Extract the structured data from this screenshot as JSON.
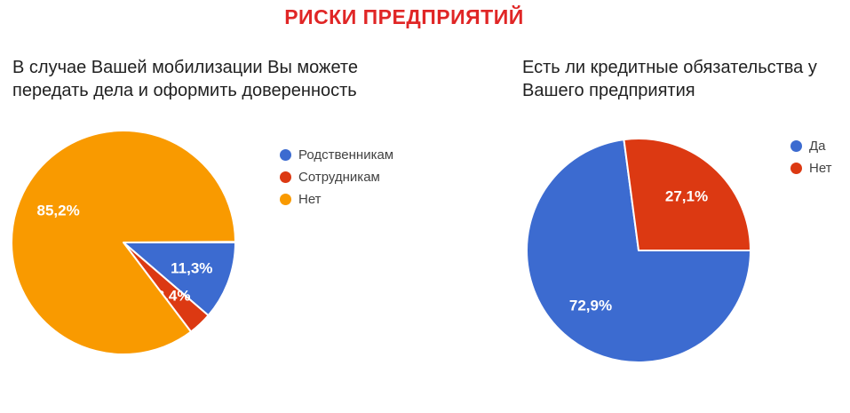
{
  "page": {
    "title": "РИСКИ ПРЕДПРИЯТИЙ",
    "title_color": "#e02626",
    "background_color": "#ffffff"
  },
  "text_colors": {
    "question": "#212121",
    "legend": "#424242",
    "slice_label": "#ffffff"
  },
  "chart_data": [
    {
      "type": "pie",
      "question": "В случае Вашей мобилизации Вы можете передать дела и оформить доверенность",
      "start_angle": "3-oclock",
      "direction": "clockwise",
      "legend_position": "right",
      "grid": false,
      "slices": [
        {
          "label": "Родственникам",
          "value_pct": 11.3,
          "display": "11,3%",
          "color": "#3c6bd0"
        },
        {
          "label": "Сотрудникам",
          "value_pct": 3.4,
          "display": "3,4%",
          "color": "#dc3912"
        },
        {
          "label": "Нет",
          "value_pct": 85.2,
          "display": "85,2%",
          "color": "#f99a00"
        }
      ]
    },
    {
      "type": "pie",
      "question": "Есть ли кредитные обязательства у Вашего предприятия",
      "start_angle": "3-oclock",
      "direction": "clockwise",
      "legend_position": "right",
      "grid": false,
      "slices": [
        {
          "label": "Да",
          "value_pct": 72.9,
          "display": "72,9%",
          "color": "#3c6bd0"
        },
        {
          "label": "Нет",
          "value_pct": 27.1,
          "display": "27,1%",
          "color": "#dc3912"
        }
      ]
    }
  ]
}
